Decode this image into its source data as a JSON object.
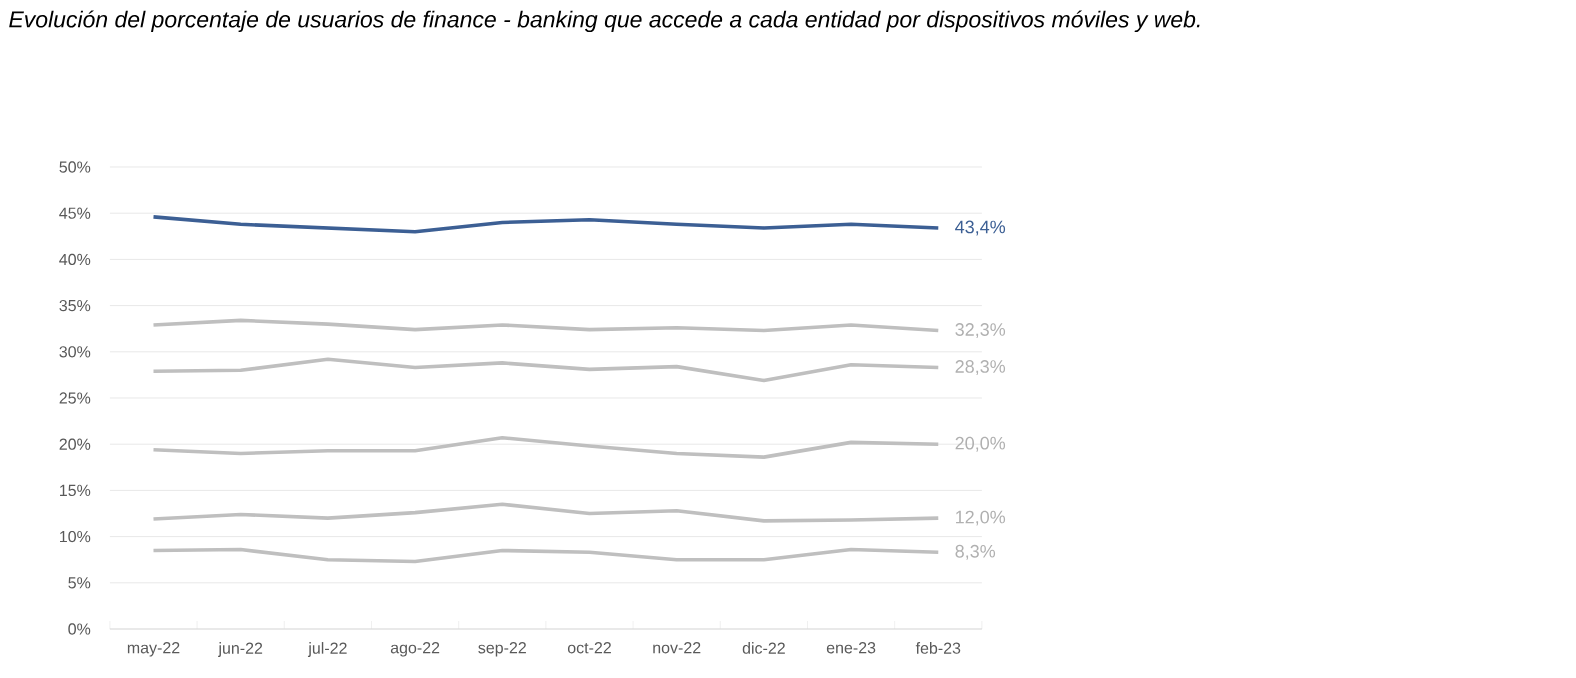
{
  "chart_data": {
    "type": "line",
    "title": "Evolución del porcentaje de usuarios de finance - banking que accede a cada entidad por dispositivos móviles y web.",
    "categories": [
      "may-22",
      "jun-22",
      "jul-22",
      "ago-22",
      "sep-22",
      "oct-22",
      "nov-22",
      "dic-22",
      "ene-23",
      "feb-23"
    ],
    "series": [
      {
        "color": "#3c5f94",
        "values": [
          44.6,
          43.8,
          43.4,
          43.0,
          44.0,
          44.3,
          43.8,
          43.4,
          43.8,
          43.4
        ],
        "value_labels": [
          null,
          null,
          null,
          null,
          null,
          null,
          null,
          null,
          null,
          "43,4%"
        ]
      },
      {
        "color": "#bfbfbf",
        "values": [
          32.9,
          33.4,
          33.0,
          32.4,
          32.9,
          32.4,
          32.6,
          32.3,
          32.9,
          32.3
        ],
        "value_labels": [
          null,
          null,
          null,
          null,
          null,
          null,
          null,
          null,
          null,
          "32,3%"
        ]
      },
      {
        "color": "#bfbfbf",
        "values": [
          27.9,
          28.0,
          29.2,
          28.3,
          28.8,
          28.1,
          28.4,
          26.9,
          28.6,
          28.3
        ],
        "value_labels": [
          null,
          null,
          null,
          null,
          null,
          null,
          null,
          null,
          null,
          "28,3%"
        ]
      },
      {
        "color": "#bfbfbf",
        "values": [
          19.4,
          19.0,
          19.3,
          19.3,
          20.7,
          19.8,
          19.0,
          18.6,
          20.2,
          20.0
        ],
        "value_labels": [
          null,
          null,
          null,
          null,
          null,
          null,
          null,
          null,
          null,
          "20,0%"
        ]
      },
      {
        "color": "#bfbfbf",
        "values": [
          11.9,
          12.4,
          12.0,
          12.6,
          13.5,
          12.5,
          12.8,
          11.7,
          11.8,
          12.0
        ],
        "value_labels": [
          null,
          null,
          null,
          null,
          null,
          null,
          null,
          null,
          null,
          "12,0%"
        ]
      },
      {
        "color": "#bfbfbf",
        "values": [
          8.5,
          8.6,
          7.5,
          7.3,
          8.5,
          8.3,
          7.5,
          7.5,
          8.6,
          8.3
        ],
        "value_labels": [
          null,
          null,
          null,
          null,
          null,
          null,
          null,
          null,
          null,
          "8,3%"
        ]
      }
    ],
    "ylim": [
      0,
      50
    ],
    "yticks": [
      {
        "value": 0,
        "label": "0%"
      },
      {
        "value": 5,
        "label": "5%"
      },
      {
        "value": 10,
        "label": "10%"
      },
      {
        "value": 15,
        "label": "15%"
      },
      {
        "value": 20,
        "label": "20%"
      },
      {
        "value": 25,
        "label": "25%"
      },
      {
        "value": 30,
        "label": "30%"
      },
      {
        "value": 35,
        "label": "35%"
      },
      {
        "value": 40,
        "label": "40%"
      },
      {
        "value": 45,
        "label": "45%"
      },
      {
        "value": 50,
        "label": "50%"
      }
    ],
    "grid": "y",
    "legend": false,
    "marker": "none",
    "line_style": "solid"
  }
}
